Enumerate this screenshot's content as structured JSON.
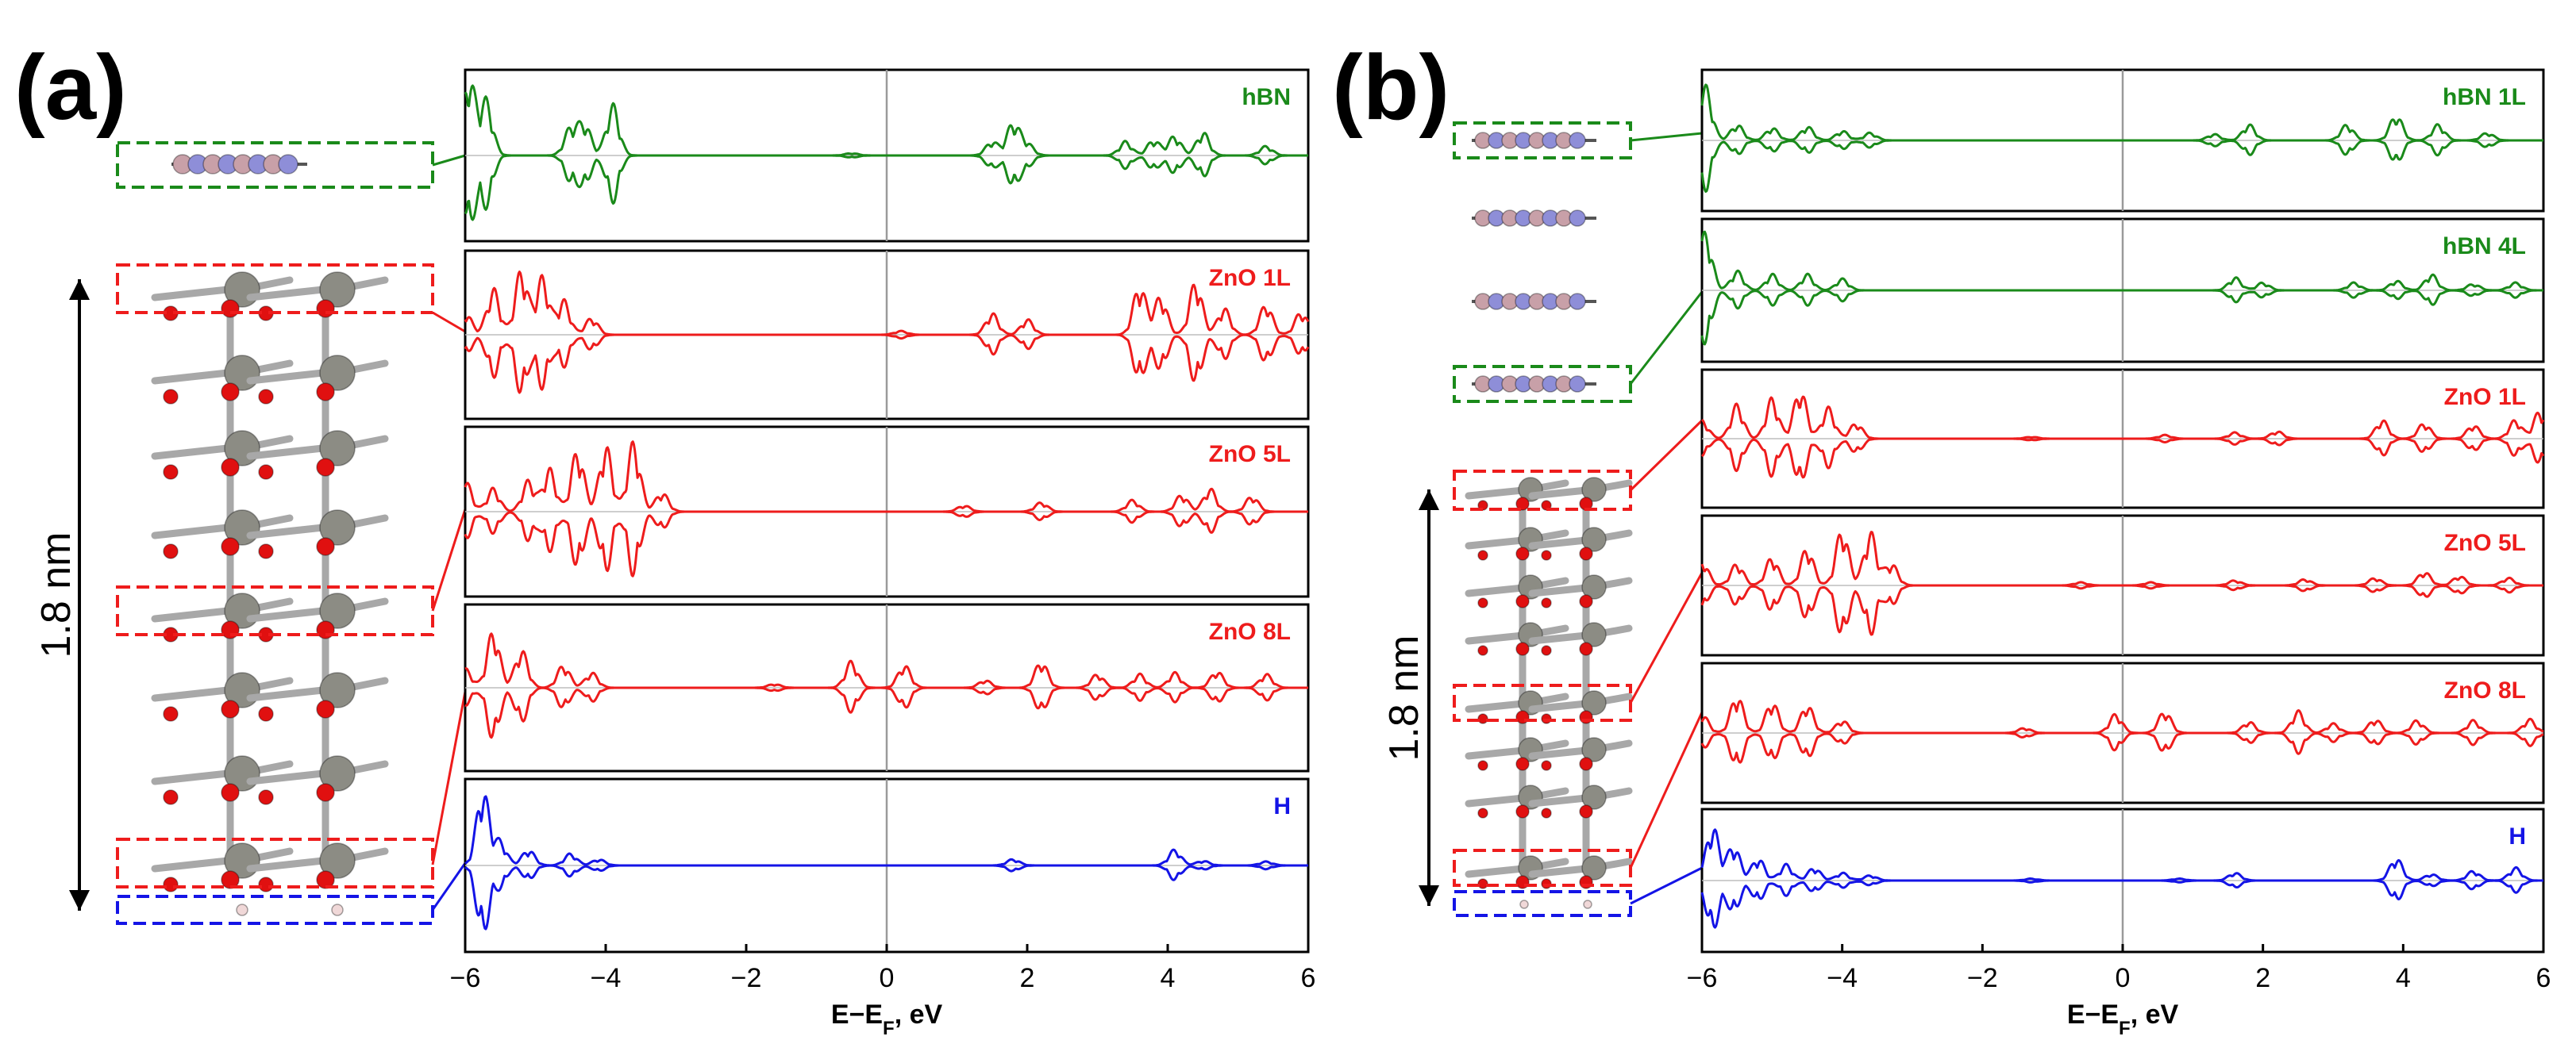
{
  "colors": {
    "hBN": "#1a8a1a",
    "ZnO": "#ee1c1c",
    "H": "#1414e6",
    "Zn_atom": "#8c8c84",
    "O_atom": "#e01010",
    "B_atom": "#c8a0a8",
    "N_atom": "#8e8ed8"
  },
  "panels": [
    {
      "label": "(a)",
      "scale_label": "1.8 nm",
      "x_axis_label": "E−E",
      "x_axis_sub": "F",
      "x_axis_unit": ", eV",
      "x_ticks": [
        "−6",
        "−4",
        "−2",
        "0",
        "2",
        "4",
        "6"
      ]
    },
    {
      "label": "(b)",
      "scale_label": "1.8 nm",
      "x_axis_label": "E−E",
      "x_axis_sub": "F",
      "x_axis_unit": ", eV",
      "x_ticks": [
        "−6",
        "−4",
        "−2",
        "0",
        "2",
        "4",
        "6"
      ]
    }
  ],
  "chart_data": [
    {
      "type": "line",
      "title": "(a)",
      "xlabel": "E−E_F, eV",
      "ylabel": "",
      "xlim": [
        -6,
        6
      ],
      "description_of_values": "projected density of states (spin up / spin down, mirrored about zero) for each layer",
      "series": [
        {
          "name": "hBN",
          "color": "#1a8a1a",
          "features": [
            [
              -5.95,
              1.0
            ],
            [
              -5.7,
              0.7
            ],
            [
              -4.5,
              0.35
            ],
            [
              -4.3,
              0.4
            ],
            [
              -3.9,
              0.65
            ],
            [
              -0.5,
              0.03
            ],
            [
              1.5,
              0.18
            ],
            [
              1.8,
              0.42
            ],
            [
              2.0,
              0.15
            ],
            [
              3.4,
              0.18
            ],
            [
              3.8,
              0.2
            ],
            [
              4.1,
              0.25
            ],
            [
              4.5,
              0.3
            ],
            [
              5.4,
              0.12
            ]
          ]
        },
        {
          "name": "ZnO 1L",
          "color": "#ee1c1c",
          "features": [
            [
              -6.0,
              0.3
            ],
            [
              -5.6,
              0.6
            ],
            [
              -5.2,
              0.85
            ],
            [
              -4.9,
              0.75
            ],
            [
              -4.6,
              0.45
            ],
            [
              -4.2,
              0.22
            ],
            [
              0.2,
              0.05
            ],
            [
              1.5,
              0.28
            ],
            [
              2.0,
              0.2
            ],
            [
              3.6,
              0.65
            ],
            [
              3.9,
              0.5
            ],
            [
              4.4,
              0.7
            ],
            [
              4.8,
              0.35
            ],
            [
              5.4,
              0.4
            ],
            [
              5.9,
              0.3
            ]
          ]
        },
        {
          "name": "ZnO 5L",
          "color": "#ee1c1c",
          "features": [
            [
              -6.0,
              0.4
            ],
            [
              -5.6,
              0.3
            ],
            [
              -5.1,
              0.4
            ],
            [
              -4.8,
              0.55
            ],
            [
              -4.4,
              0.8
            ],
            [
              -4.0,
              0.85
            ],
            [
              -3.6,
              0.9
            ],
            [
              -3.2,
              0.25
            ],
            [
              1.1,
              0.08
            ],
            [
              2.2,
              0.12
            ],
            [
              3.5,
              0.15
            ],
            [
              4.2,
              0.22
            ],
            [
              4.6,
              0.3
            ],
            [
              5.2,
              0.2
            ]
          ]
        },
        {
          "name": "ZnO 8L",
          "color": "#ee1c1c",
          "features": [
            [
              -6.0,
              0.25
            ],
            [
              -5.6,
              0.75
            ],
            [
              -5.2,
              0.5
            ],
            [
              -4.6,
              0.3
            ],
            [
              -4.2,
              0.2
            ],
            [
              -1.6,
              0.05
            ],
            [
              -0.5,
              0.35
            ],
            [
              0.25,
              0.3
            ],
            [
              1.4,
              0.1
            ],
            [
              2.2,
              0.35
            ],
            [
              3.0,
              0.18
            ],
            [
              3.6,
              0.18
            ],
            [
              4.1,
              0.2
            ],
            [
              4.7,
              0.22
            ],
            [
              5.4,
              0.18
            ]
          ]
        },
        {
          "name": "H",
          "color": "#1414e6",
          "features": [
            [
              -5.75,
              0.95
            ],
            [
              -5.5,
              0.3
            ],
            [
              -5.1,
              0.2
            ],
            [
              -4.5,
              0.15
            ],
            [
              -4.1,
              0.08
            ],
            [
              1.8,
              0.08
            ],
            [
              4.1,
              0.2
            ],
            [
              4.5,
              0.06
            ],
            [
              5.4,
              0.05
            ]
          ]
        }
      ]
    },
    {
      "type": "line",
      "title": "(b)",
      "xlabel": "E−E_F, eV",
      "ylabel": "",
      "xlim": [
        -6,
        6
      ],
      "description_of_values": "projected density of states (spin up / spin down, mirrored about zero) for each layer",
      "series": [
        {
          "name": "hBN 1L",
          "color": "#1a8a1a",
          "features": [
            [
              -5.95,
              0.85
            ],
            [
              -5.5,
              0.25
            ],
            [
              -5.0,
              0.2
            ],
            [
              -4.5,
              0.22
            ],
            [
              -4.0,
              0.15
            ],
            [
              -3.6,
              0.12
            ],
            [
              1.3,
              0.1
            ],
            [
              1.8,
              0.25
            ],
            [
              3.2,
              0.25
            ],
            [
              3.9,
              0.4
            ],
            [
              4.5,
              0.25
            ],
            [
              5.2,
              0.12
            ]
          ]
        },
        {
          "name": "hBN 4L",
          "color": "#1a8a1a",
          "features": [
            [
              -5.95,
              0.9
            ],
            [
              -5.5,
              0.3
            ],
            [
              -5.0,
              0.25
            ],
            [
              -4.5,
              0.25
            ],
            [
              -4.0,
              0.18
            ],
            [
              1.6,
              0.2
            ],
            [
              2.0,
              0.12
            ],
            [
              3.3,
              0.12
            ],
            [
              3.9,
              0.15
            ],
            [
              4.4,
              0.25
            ],
            [
              5.0,
              0.1
            ],
            [
              5.6,
              0.12
            ]
          ]
        },
        {
          "name": "ZnO 1L",
          "color": "#ee1c1c",
          "features": [
            [
              -6.0,
              0.3
            ],
            [
              -5.5,
              0.55
            ],
            [
              -5.0,
              0.65
            ],
            [
              -4.6,
              0.8
            ],
            [
              -4.2,
              0.5
            ],
            [
              -3.8,
              0.25
            ],
            [
              -1.3,
              0.03
            ],
            [
              0.6,
              0.06
            ],
            [
              1.6,
              0.1
            ],
            [
              2.2,
              0.12
            ],
            [
              3.7,
              0.3
            ],
            [
              4.3,
              0.25
            ],
            [
              5.0,
              0.22
            ],
            [
              5.6,
              0.3
            ],
            [
              5.95,
              0.45
            ]
          ]
        },
        {
          "name": "ZnO 5L",
          "color": "#ee1c1c",
          "features": [
            [
              -6.0,
              0.4
            ],
            [
              -5.5,
              0.35
            ],
            [
              -5.0,
              0.45
            ],
            [
              -4.5,
              0.6
            ],
            [
              -4.0,
              0.9
            ],
            [
              -3.6,
              0.85
            ],
            [
              -3.3,
              0.35
            ],
            [
              -0.6,
              0.05
            ],
            [
              0.4,
              0.05
            ],
            [
              1.6,
              0.08
            ],
            [
              2.6,
              0.1
            ],
            [
              3.6,
              0.12
            ],
            [
              4.3,
              0.22
            ],
            [
              4.8,
              0.15
            ],
            [
              5.5,
              0.12
            ]
          ]
        },
        {
          "name": "ZnO 8L",
          "color": "#ee1c1c",
          "features": [
            [
              -6.0,
              0.3
            ],
            [
              -5.5,
              0.6
            ],
            [
              -5.0,
              0.5
            ],
            [
              -4.5,
              0.45
            ],
            [
              -4.0,
              0.2
            ],
            [
              -1.4,
              0.08
            ],
            [
              -0.1,
              0.3
            ],
            [
              0.6,
              0.35
            ],
            [
              1.8,
              0.18
            ],
            [
              2.5,
              0.35
            ],
            [
              3.0,
              0.15
            ],
            [
              3.6,
              0.22
            ],
            [
              4.2,
              0.2
            ],
            [
              5.0,
              0.2
            ],
            [
              5.8,
              0.22
            ]
          ]
        },
        {
          "name": "H",
          "color": "#1414e6",
          "features": [
            [
              -5.85,
              0.85
            ],
            [
              -5.55,
              0.55
            ],
            [
              -5.2,
              0.35
            ],
            [
              -4.8,
              0.25
            ],
            [
              -4.4,
              0.2
            ],
            [
              -4.0,
              0.12
            ],
            [
              -3.6,
              0.08
            ],
            [
              -1.3,
              0.03
            ],
            [
              0.8,
              0.03
            ],
            [
              1.6,
              0.12
            ],
            [
              3.9,
              0.35
            ],
            [
              4.4,
              0.1
            ],
            [
              5.0,
              0.15
            ],
            [
              5.6,
              0.2
            ]
          ]
        }
      ]
    }
  ]
}
